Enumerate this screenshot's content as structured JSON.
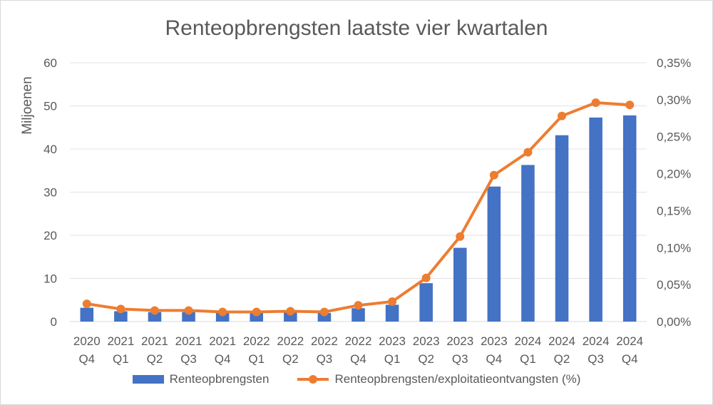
{
  "chart_data": {
    "type": "bar",
    "title": "Renteopbrengsten laatste vier kwartalen",
    "ylabel": "Miljoenen",
    "ylim": [
      0,
      60
    ],
    "yticks": [
      "0",
      "10",
      "20",
      "30",
      "40",
      "50",
      "60"
    ],
    "y2lim": [
      0,
      0.35
    ],
    "y2ticks": [
      "0,00%",
      "0,05%",
      "0,10%",
      "0,15%",
      "0,20%",
      "0,25%",
      "0,30%",
      "0,35%"
    ],
    "categories": [
      [
        "2020",
        "Q4"
      ],
      [
        "2021",
        "Q1"
      ],
      [
        "2021",
        "Q2"
      ],
      [
        "2021",
        "Q3"
      ],
      [
        "2021",
        "Q4"
      ],
      [
        "2022",
        "Q1"
      ],
      [
        "2022",
        "Q2"
      ],
      [
        "2022",
        "Q3"
      ],
      [
        "2022",
        "Q4"
      ],
      [
        "2023",
        "Q1"
      ],
      [
        "2023",
        "Q2"
      ],
      [
        "2023",
        "Q3"
      ],
      [
        "2023",
        "Q4"
      ],
      [
        "2024",
        "Q1"
      ],
      [
        "2024",
        "Q2"
      ],
      [
        "2024",
        "Q3"
      ],
      [
        "2024",
        "Q4"
      ]
    ],
    "series": [
      {
        "name": "Renteopbrengsten",
        "type": "bar",
        "axis": "left",
        "color": "#4472c4",
        "values": [
          3.2,
          2.4,
          2.2,
          2.2,
          2.0,
          2.0,
          2.2,
          2.0,
          3.1,
          3.9,
          8.9,
          17.1,
          31.3,
          36.3,
          43.2,
          47.3,
          47.8
        ]
      },
      {
        "name": "Renteopbrengsten/exploitatieontvangsten (%)",
        "type": "line",
        "axis": "right",
        "color": "#ed7d31",
        "values": [
          0.024,
          0.017,
          0.015,
          0.015,
          0.013,
          0.013,
          0.014,
          0.013,
          0.022,
          0.027,
          0.059,
          0.115,
          0.198,
          0.229,
          0.278,
          0.296,
          0.293
        ]
      }
    ],
    "legend_position": "bottom",
    "grid": true
  }
}
